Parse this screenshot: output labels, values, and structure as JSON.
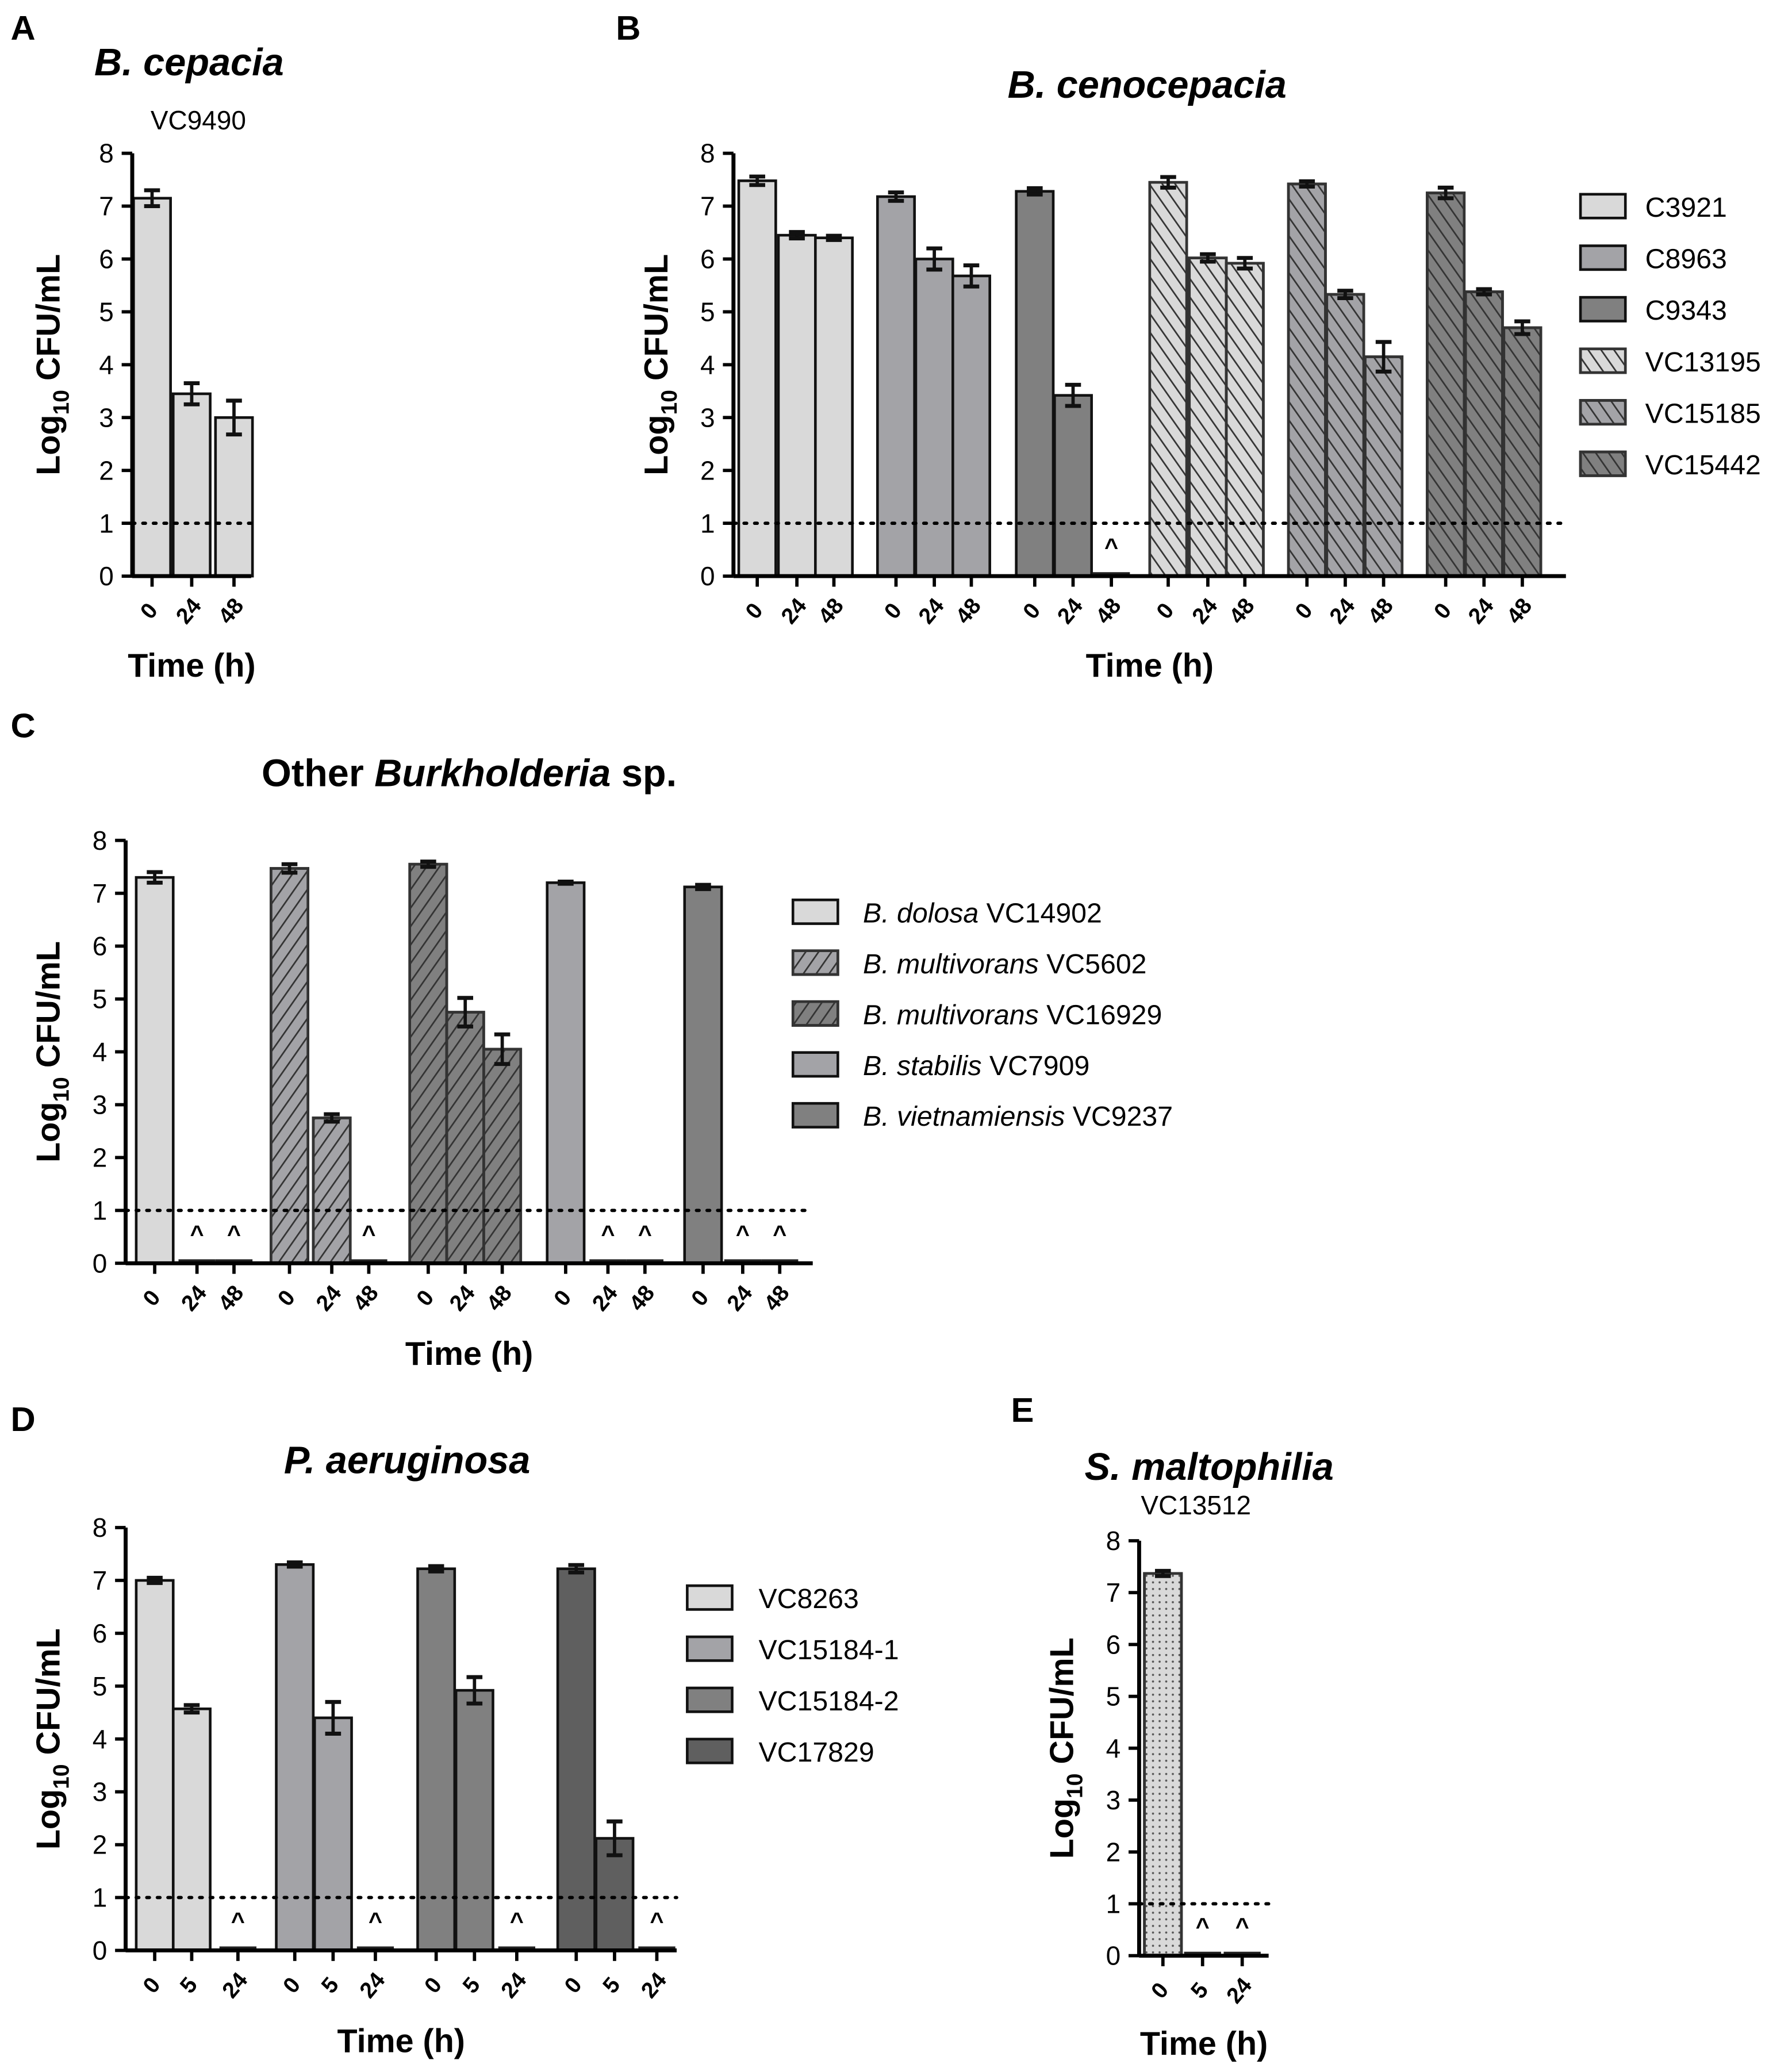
{
  "colors": {
    "light": "#d9d9d9",
    "mid": "#a3a3a7",
    "dark": "#808080",
    "darker": "#5f5f5f",
    "hatch": "#333333"
  },
  "chart_data": [
    {
      "type": "bar",
      "letter": "A",
      "title": [
        {
          "t": "B. cepacia",
          "i": true
        }
      ],
      "subtitle": "VC9490",
      "ylabel": {
        "main": "Log",
        "sub": "10",
        "rest": " CFU/mL"
      },
      "xlabel": "Time (h)",
      "ylim": [
        0,
        8
      ],
      "yticks": [
        0,
        1,
        2,
        3,
        4,
        5,
        6,
        7,
        8
      ],
      "detection_limit": 1,
      "nd_marker": "^",
      "series": [
        {
          "name": "VC9490",
          "fill": "light",
          "pattern": "none",
          "x": [
            "0",
            "24",
            "48"
          ],
          "values": [
            7.15,
            3.45,
            3.0
          ],
          "errors": [
            0.15,
            0.2,
            0.32
          ],
          "nd": [
            false,
            false,
            false
          ]
        }
      ]
    },
    {
      "type": "bar",
      "letter": "B",
      "title": [
        {
          "t": "B. cenocepacia",
          "i": true
        }
      ],
      "ylabel": {
        "main": "Log",
        "sub": "10",
        "rest": " CFU/mL"
      },
      "xlabel": "Time (h)",
      "ylim": [
        0,
        8
      ],
      "yticks": [
        0,
        1,
        2,
        3,
        4,
        5,
        6,
        7,
        8
      ],
      "detection_limit": 1,
      "nd_marker": "^",
      "series": [
        {
          "name": "C3921",
          "fill": "light",
          "pattern": "none",
          "x": [
            "0",
            "24",
            "48"
          ],
          "values": [
            7.48,
            6.45,
            6.4
          ],
          "errors": [
            0.08,
            0.06,
            0.04
          ],
          "nd": [
            false,
            false,
            false
          ]
        },
        {
          "name": "C8963",
          "fill": "mid",
          "pattern": "none",
          "x": [
            "0",
            "24",
            "48"
          ],
          "values": [
            7.18,
            6.0,
            5.68
          ],
          "errors": [
            0.08,
            0.2,
            0.2
          ],
          "nd": [
            false,
            false,
            false
          ]
        },
        {
          "name": "C9343",
          "fill": "dark",
          "pattern": "none",
          "x": [
            "0",
            "24",
            "48"
          ],
          "values": [
            7.28,
            3.42,
            0
          ],
          "errors": [
            0.06,
            0.2,
            0
          ],
          "nd": [
            false,
            false,
            true
          ]
        },
        {
          "name": "VC13195",
          "fill": "light",
          "pattern": "back",
          "x": [
            "0",
            "24",
            "48"
          ],
          "values": [
            7.45,
            6.02,
            5.92
          ],
          "errors": [
            0.1,
            0.07,
            0.1
          ],
          "nd": [
            false,
            false,
            false
          ]
        },
        {
          "name": "VC15185",
          "fill": "mid",
          "pattern": "back",
          "x": [
            "0",
            "24",
            "48"
          ],
          "values": [
            7.42,
            5.33,
            4.15
          ],
          "errors": [
            0.05,
            0.07,
            0.28
          ],
          "nd": [
            false,
            false,
            false
          ]
        },
        {
          "name": "VC15442",
          "fill": "dark",
          "pattern": "back",
          "x": [
            "0",
            "24",
            "48"
          ],
          "values": [
            7.25,
            5.38,
            4.7
          ],
          "errors": [
            0.1,
            0.05,
            0.12
          ],
          "nd": [
            false,
            false,
            false
          ]
        }
      ]
    },
    {
      "type": "bar",
      "letter": "C",
      "title": [
        {
          "t": "Other ",
          "i": false
        },
        {
          "t": "Burkholderia",
          "i": true
        },
        {
          "t": " sp.",
          "i": false
        }
      ],
      "ylabel": {
        "main": "Log",
        "sub": "10",
        "rest": " CFU/mL"
      },
      "xlabel": "Time (h)",
      "ylim": [
        0,
        8
      ],
      "yticks": [
        0,
        1,
        2,
        3,
        4,
        5,
        6,
        7,
        8
      ],
      "detection_limit": 1,
      "nd_marker": "^",
      "series": [
        {
          "name": "B. dolosa VC14902",
          "legend": [
            {
              "t": "B. dolosa",
              "i": true
            },
            {
              "t": " VC14902",
              "i": false
            }
          ],
          "fill": "light",
          "pattern": "none",
          "x": [
            "0",
            "24",
            "48"
          ],
          "values": [
            7.3,
            0,
            0
          ],
          "errors": [
            0.1,
            0,
            0
          ],
          "nd": [
            false,
            true,
            true
          ]
        },
        {
          "name": "B. multivorans VC5602",
          "legend": [
            {
              "t": "B. multivorans",
              "i": true
            },
            {
              "t": " VC5602",
              "i": false
            }
          ],
          "fill": "mid",
          "pattern": "fwd",
          "x": [
            "0",
            "24",
            "48"
          ],
          "values": [
            7.47,
            2.75,
            0
          ],
          "errors": [
            0.08,
            0.07,
            0
          ],
          "nd": [
            false,
            false,
            true
          ]
        },
        {
          "name": "B. multivorans VC16929",
          "legend": [
            {
              "t": "B. multivorans",
              "i": true
            },
            {
              "t": " VC16929",
              "i": false
            }
          ],
          "fill": "dark",
          "pattern": "fwd",
          "x": [
            "0",
            "24",
            "48"
          ],
          "values": [
            7.55,
            4.75,
            4.05
          ],
          "errors": [
            0.05,
            0.27,
            0.28
          ],
          "nd": [
            false,
            false,
            false
          ]
        },
        {
          "name": "B. stabilis VC7909",
          "legend": [
            {
              "t": "B. stabilis",
              "i": true
            },
            {
              "t": " VC7909",
              "i": false
            }
          ],
          "fill": "mid",
          "pattern": "none",
          "x": [
            "0",
            "24",
            "48"
          ],
          "values": [
            7.2,
            0,
            0
          ],
          "errors": [
            0.02,
            0,
            0
          ],
          "nd": [
            false,
            true,
            true
          ]
        },
        {
          "name": "B. vietnamiensis VC9237",
          "legend": [
            {
              "t": "B. vietnamiensis",
              "i": true
            },
            {
              "t": " VC9237",
              "i": false
            }
          ],
          "fill": "dark",
          "pattern": "none",
          "x": [
            "0",
            "24",
            "48"
          ],
          "values": [
            7.12,
            0,
            0
          ],
          "errors": [
            0.04,
            0,
            0
          ],
          "nd": [
            false,
            true,
            true
          ]
        }
      ]
    },
    {
      "type": "bar",
      "letter": "D",
      "title": [
        {
          "t": "P. aeruginosa",
          "i": true
        }
      ],
      "ylabel": {
        "main": "Log",
        "sub": "10",
        "rest": " CFU/mL"
      },
      "xlabel": "Time (h)",
      "ylim": [
        0,
        8
      ],
      "yticks": [
        0,
        1,
        2,
        3,
        4,
        5,
        6,
        7,
        8
      ],
      "detection_limit": 1,
      "nd_marker": "^",
      "series": [
        {
          "name": "VC8263",
          "fill": "light",
          "pattern": "none",
          "x": [
            "0",
            "5",
            "24"
          ],
          "values": [
            7.0,
            4.57,
            0
          ],
          "errors": [
            0.05,
            0.07,
            0
          ],
          "nd": [
            false,
            false,
            true
          ]
        },
        {
          "name": "VC15184-1",
          "fill": "mid",
          "pattern": "none",
          "x": [
            "0",
            "5",
            "24"
          ],
          "values": [
            7.3,
            4.4,
            0
          ],
          "errors": [
            0.04,
            0.3,
            0
          ],
          "nd": [
            false,
            false,
            true
          ]
        },
        {
          "name": "VC15184-2",
          "fill": "dark",
          "pattern": "none",
          "x": [
            "0",
            "5",
            "24"
          ],
          "values": [
            7.22,
            4.92,
            0
          ],
          "errors": [
            0.05,
            0.25,
            0
          ],
          "nd": [
            false,
            false,
            true
          ]
        },
        {
          "name": "VC17829",
          "fill": "darker",
          "pattern": "none",
          "x": [
            "0",
            "5",
            "24"
          ],
          "values": [
            7.22,
            2.12,
            0
          ],
          "errors": [
            0.07,
            0.32,
            0
          ],
          "nd": [
            false,
            false,
            true
          ]
        }
      ]
    },
    {
      "type": "bar",
      "letter": "E",
      "title": [
        {
          "t": "S. maltophilia",
          "i": true
        }
      ],
      "subtitle": "VC13512",
      "ylabel": {
        "main": "Log",
        "sub": "10",
        "rest": " CFU/mL"
      },
      "xlabel": "Time (h)",
      "ylim": [
        0,
        8
      ],
      "yticks": [
        0,
        1,
        2,
        3,
        4,
        5,
        6,
        7,
        8
      ],
      "detection_limit": 1,
      "nd_marker": "^",
      "series": [
        {
          "name": "VC13512",
          "fill": "light",
          "pattern": "dots",
          "x": [
            "0",
            "5",
            "24"
          ],
          "values": [
            7.37,
            0,
            0
          ],
          "errors": [
            0.05,
            0,
            0
          ],
          "nd": [
            false,
            true,
            true
          ]
        }
      ]
    }
  ]
}
